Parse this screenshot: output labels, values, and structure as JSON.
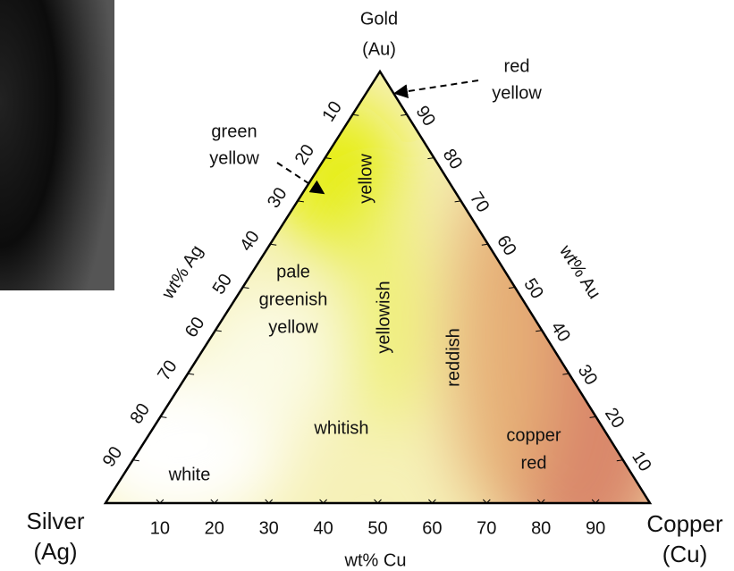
{
  "vertices": {
    "top": {
      "name": "Gold",
      "symbol": "(Au)"
    },
    "left": {
      "name": "Silver",
      "symbol": "(Ag)"
    },
    "right": {
      "name": "Copper",
      "symbol": "(Cu)"
    }
  },
  "axes": {
    "ag": {
      "title": "wt% Ag",
      "ticks": [
        10,
        20,
        30,
        40,
        50,
        60,
        70,
        80,
        90
      ]
    },
    "au": {
      "title": "wt% Au",
      "ticks": [
        10,
        20,
        30,
        40,
        50,
        60,
        70,
        80,
        90
      ]
    },
    "cu": {
      "title": "wt% Cu",
      "ticks": [
        10,
        20,
        30,
        40,
        50,
        60,
        70,
        80,
        90
      ]
    }
  },
  "regions": [
    {
      "lines": [
        "yellow"
      ]
    },
    {
      "lines": [
        "yellowish"
      ]
    },
    {
      "lines": [
        "reddish"
      ]
    },
    {
      "lines": [
        "pale",
        "greenish",
        "yellow"
      ]
    },
    {
      "lines": [
        "whitish"
      ]
    },
    {
      "lines": [
        "white"
      ]
    },
    {
      "lines": [
        "copper",
        "red"
      ]
    }
  ],
  "annotations": [
    {
      "lines": [
        "red",
        "yellow"
      ]
    },
    {
      "lines": [
        "green",
        "yellow"
      ]
    }
  ]
}
